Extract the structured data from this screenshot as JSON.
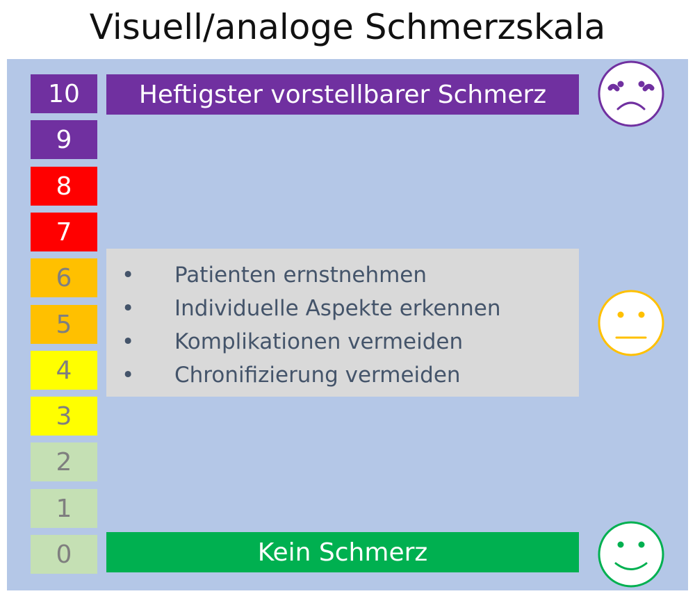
{
  "title": "Visuell/analoge Schmerzskala",
  "scale": [
    {
      "value": "10",
      "color": "#7030a0",
      "text_color": "#ffffff"
    },
    {
      "value": "9",
      "color": "#7030a0",
      "text_color": "#ffffff"
    },
    {
      "value": "8",
      "color": "#ff0000",
      "text_color": "#ffffff"
    },
    {
      "value": "7",
      "color": "#ff0000",
      "text_color": "#ffffff"
    },
    {
      "value": "6",
      "color": "#ffc000",
      "text_color": "#7f7f7f"
    },
    {
      "value": "5",
      "color": "#ffc000",
      "text_color": "#7f7f7f"
    },
    {
      "value": "4",
      "color": "#ffff00",
      "text_color": "#7f7f7f"
    },
    {
      "value": "3",
      "color": "#ffff00",
      "text_color": "#7f7f7f"
    },
    {
      "value": "2",
      "color": "#c5e0b4",
      "text_color": "#7f7f7f"
    },
    {
      "value": "1",
      "color": "#c5e0b4",
      "text_color": "#7f7f7f"
    },
    {
      "value": "0",
      "color": "#c5e0b4",
      "text_color": "#7f7f7f"
    }
  ],
  "top_label": "Heftigster vorstellbarer Schmerz",
  "bottom_label": "Kein Schmerz",
  "bullet_symbol": "•",
  "bullets": [
    "Patienten ernstnehmen",
    "Individuelle Aspekte erkennen",
    "Komplikationen vermeiden",
    "Chronifizierung vermeiden"
  ],
  "faces": {
    "top": {
      "icon": "sad-face-icon",
      "color": "#7030a0"
    },
    "middle": {
      "icon": "neutral-face-icon",
      "color": "#ffc000"
    },
    "bottom": {
      "icon": "happy-face-icon",
      "color": "#00b050"
    }
  }
}
